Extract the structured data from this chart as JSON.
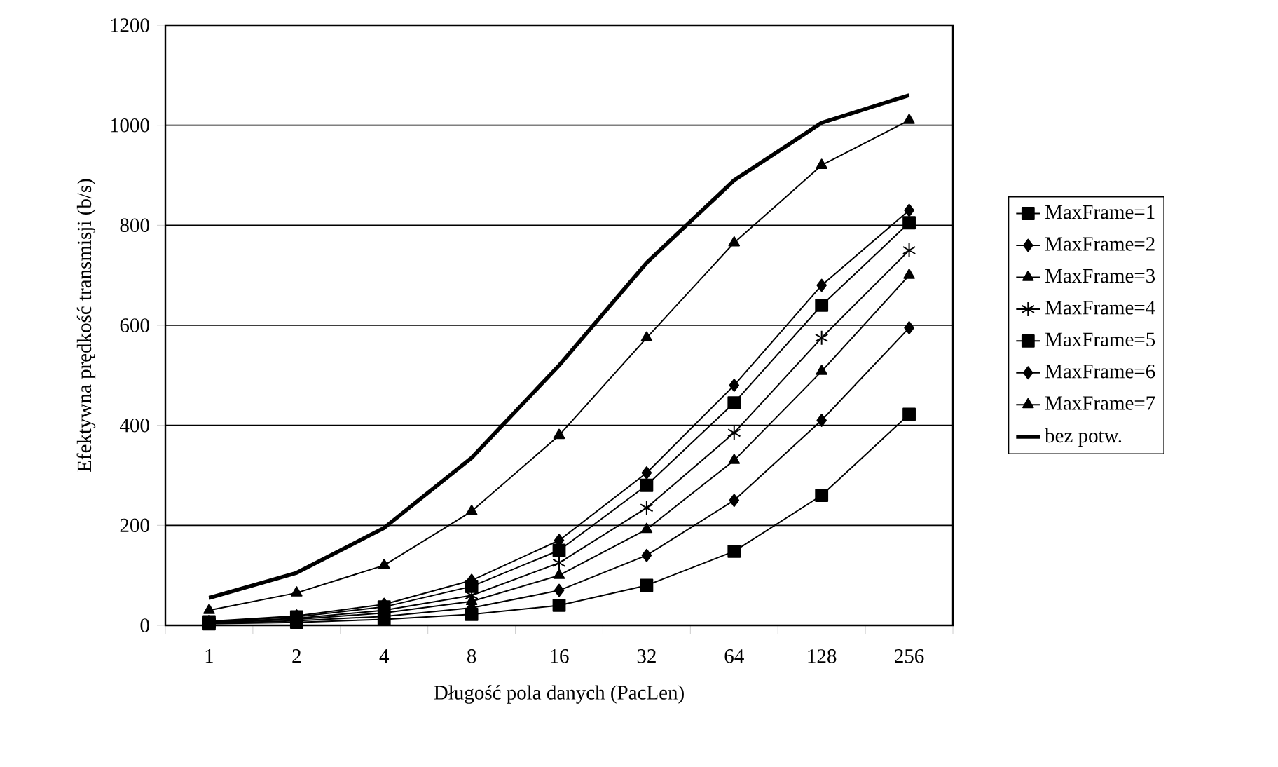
{
  "chart_data": {
    "type": "line",
    "xlabel": "Długość pola danych (PacLen)",
    "ylabel": "Efektywna prędkość transmisji (b/s)",
    "categories": [
      "1",
      "2",
      "4",
      "8",
      "16",
      "32",
      "64",
      "128",
      "256"
    ],
    "ylim": [
      0,
      1200
    ],
    "yticks": [
      0,
      200,
      400,
      600,
      800,
      1000,
      1200
    ],
    "grid": "y",
    "legend": "right",
    "series": [
      {
        "name": "MaxFrame=1",
        "color": "#000000",
        "marker": "square",
        "values": [
          3,
          6,
          12,
          22,
          40,
          80,
          148,
          260,
          422
        ]
      },
      {
        "name": "MaxFrame=2",
        "color": "#000000",
        "marker": "diamond",
        "values": [
          4,
          9,
          18,
          35,
          70,
          140,
          250,
          410,
          595
        ]
      },
      {
        "name": "MaxFrame=3",
        "color": "#000000",
        "marker": "triangle",
        "values": [
          5,
          12,
          25,
          48,
          100,
          192,
          330,
          508,
          700
        ]
      },
      {
        "name": "MaxFrame=4",
        "color": "#000000",
        "marker": "cross",
        "values": [
          6,
          14,
          30,
          60,
          125,
          235,
          385,
          575,
          750
        ]
      },
      {
        "name": "MaxFrame=5",
        "color": "#000000",
        "marker": "square",
        "values": [
          7,
          17,
          37,
          78,
          150,
          280,
          445,
          640,
          805
        ]
      },
      {
        "name": "MaxFrame=6",
        "color": "#000000",
        "marker": "diamond",
        "values": [
          8,
          19,
          42,
          90,
          170,
          305,
          480,
          680,
          830
        ]
      },
      {
        "name": "MaxFrame=7",
        "color": "#000000",
        "marker": "triangle",
        "values": [
          30,
          65,
          120,
          228,
          380,
          575,
          765,
          920,
          1010
        ]
      },
      {
        "name": "bez potw.",
        "color": "#000000",
        "marker": "none",
        "values": [
          55,
          105,
          195,
          335,
          520,
          725,
          890,
          1005,
          1060
        ]
      }
    ]
  }
}
